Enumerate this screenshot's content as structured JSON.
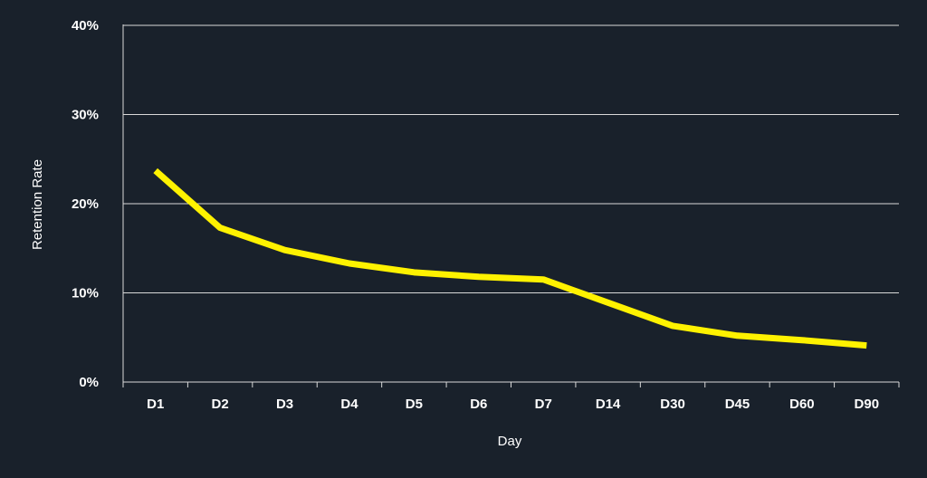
{
  "chart_data": {
    "type": "line",
    "title": "",
    "xlabel": "Day",
    "ylabel": "Retention Rate",
    "categories": [
      "D1",
      "D2",
      "D3",
      "D4",
      "D5",
      "D6",
      "D7",
      "D14",
      "D30",
      "D45",
      "D60",
      "D90"
    ],
    "series": [
      {
        "values": [
          23.7,
          17.3,
          14.8,
          13.3,
          12.3,
          11.8,
          11.5,
          8.9,
          6.3,
          5.2,
          4.7,
          4.1
        ]
      }
    ],
    "ylim": [
      0,
      40
    ],
    "yticks": [
      0,
      10,
      20,
      30,
      40
    ],
    "ytick_labels": [
      "0%",
      "10%",
      "20%",
      "30%",
      "40%"
    ],
    "grid": true,
    "legend": "none",
    "colors": {
      "background": "#19212b",
      "line": "#fff200",
      "grid": "#d9d9d9",
      "text": "#ffffff"
    }
  }
}
